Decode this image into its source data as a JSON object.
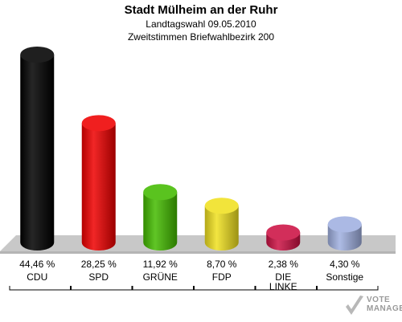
{
  "header": {
    "title": "Stadt Mülheim an der Ruhr",
    "subtitle_1": "Landtagswahl 09.05.2010",
    "subtitle_2": "Zweitstimmen Briefwahlbezirk 200"
  },
  "chart_data": {
    "type": "bar",
    "title": "Stadt Mülheim an der Ruhr",
    "subtitle": "Landtagswahl 09.05.2010 / Zweitstimmen Briefwahlbezirk 200",
    "categories": [
      "CDU",
      "SPD",
      "GRÜNE",
      "FDP",
      "DIE LINKE",
      "Sonstige"
    ],
    "category_lines": [
      [
        "CDU"
      ],
      [
        "SPD"
      ],
      [
        "GRÜNE"
      ],
      [
        "FDP"
      ],
      [
        "DIE",
        "LINKE"
      ],
      [
        "Sonstige"
      ]
    ],
    "values": [
      44.46,
      28.25,
      11.92,
      8.7,
      2.38,
      4.3
    ],
    "value_labels": [
      "44,46 %",
      "28,25 %",
      "11,92 %",
      "8,70 %",
      "2,38 %",
      "4,30 %"
    ],
    "colors": [
      "#000000",
      "#ee0000",
      "#44bb00",
      "#f0e020",
      "#cc1144",
      "#a0b0e0"
    ],
    "ylim": [
      0,
      44.46
    ],
    "grid": false,
    "legend": "none"
  },
  "logo": {
    "line1": "VOTE",
    "line2": "MANAGER"
  }
}
